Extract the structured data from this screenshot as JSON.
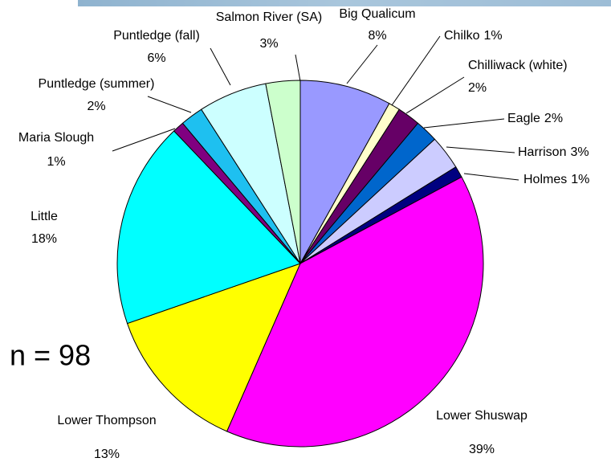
{
  "chart_data": {
    "type": "pie",
    "annotation": "n = 98",
    "categories": [
      "Big Qualicum",
      "Chilko",
      "Chilliwack (white)",
      "Eagle",
      "Harrison",
      "Holmes",
      "Lower Shuswap",
      "Lower Thompson",
      "Little",
      "Maria Slough",
      "Puntledge (summer)",
      "Puntledge (fall)",
      "Salmon River (SA)"
    ],
    "values": [
      8,
      1,
      2,
      2,
      3,
      1,
      39,
      13,
      18,
      1,
      2,
      6,
      3
    ],
    "value_labels": [
      "8%",
      "1%",
      "2%",
      "2%",
      "3%",
      "1%",
      "39%",
      "13%",
      "18%",
      "1%",
      "2%",
      "6%",
      "3%"
    ],
    "colors": [
      "#9999ff",
      "#ffffcc",
      "#660066",
      "#0066cc",
      "#ccccff",
      "#000080",
      "#ff00ff",
      "#ffff00",
      "#00ffff",
      "#800080",
      "#1ec0f0",
      "#ccffff",
      "#ccffcc"
    ]
  }
}
